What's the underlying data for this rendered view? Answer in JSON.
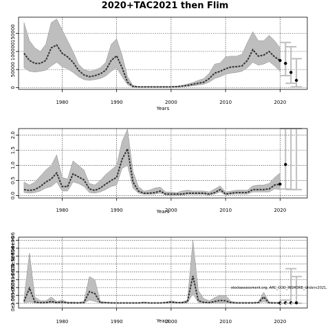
{
  "title": "2020+TAC2021 then Flim",
  "chart_data": [
    {
      "type": "line",
      "xlabel": "Years",
      "ylabel": "",
      "xlim": [
        1972,
        2025
      ],
      "ylim": [
        -5000,
        195000
      ],
      "xticks": [
        1980,
        1990,
        2000,
        2010,
        2020
      ],
      "xtick_labels": [
        "1980",
        "1990",
        "2000",
        "2010",
        "2020"
      ],
      "yticks": [
        0,
        50000,
        100000,
        150000
      ],
      "ytick_labels": [
        "0",
        "50000",
        "100000",
        "150000"
      ],
      "grid": true,
      "x": [
        1973,
        1974,
        1975,
        1976,
        1977,
        1978,
        1979,
        1980,
        1981,
        1982,
        1983,
        1984,
        1985,
        1986,
        1987,
        1988,
        1989,
        1990,
        1991,
        1992,
        1993,
        1994,
        1995,
        1996,
        1997,
        1998,
        1999,
        2000,
        2001,
        2002,
        2003,
        2004,
        2005,
        2006,
        2007,
        2008,
        2009,
        2010,
        2011,
        2012,
        2013,
        2014,
        2015,
        2016,
        2017,
        2018,
        2019,
        2020
      ],
      "values": [
        95000,
        75000,
        67000,
        67000,
        75000,
        110000,
        118000,
        95000,
        85000,
        70000,
        48000,
        35000,
        30000,
        33000,
        38000,
        48000,
        75000,
        88000,
        55000,
        15000,
        3000,
        2000,
        2000,
        2000,
        2000,
        2000,
        2000,
        2000,
        2500,
        4000,
        6000,
        9000,
        12000,
        15000,
        25000,
        40000,
        45000,
        52000,
        57000,
        58000,
        60000,
        75000,
        105000,
        87000,
        90000,
        100000,
        85000,
        75000
      ],
      "upper": [
        180000,
        130000,
        110000,
        100000,
        120000,
        180000,
        190000,
        160000,
        130000,
        100000,
        65000,
        50000,
        45000,
        48000,
        55000,
        70000,
        120000,
        135000,
        90000,
        30000,
        6000,
        3000,
        3000,
        3000,
        3000,
        3000,
        3000,
        3000,
        4000,
        6000,
        10000,
        14000,
        20000,
        25000,
        40000,
        65000,
        68000,
        85000,
        87000,
        87000,
        92000,
        125000,
        155000,
        130000,
        130000,
        145000,
        130000,
        110000
      ],
      "lower": [
        55000,
        45000,
        43000,
        45000,
        48000,
        60000,
        70000,
        58000,
        52000,
        42000,
        30000,
        22000,
        20000,
        22000,
        25000,
        32000,
        45000,
        55000,
        30000,
        8000,
        1000,
        800,
        800,
        800,
        800,
        800,
        800,
        800,
        1000,
        2000,
        3000,
        5000,
        7000,
        9000,
        15000,
        25000,
        30000,
        37000,
        40000,
        42000,
        45000,
        55000,
        70000,
        62000,
        65000,
        72000,
        60000,
        45000
      ],
      "projection": {
        "x": [
          2021,
          2022,
          2023
        ],
        "values": [
          67000,
          42000,
          20000
        ],
        "upper": [
          125000,
          113000,
          80000
        ],
        "lower": [
          33000,
          12000,
          2000
        ]
      },
      "annotation": ""
    },
    {
      "type": "line",
      "xlabel": "Years",
      "ylabel": "",
      "xlim": [
        1972,
        2025
      ],
      "ylim": [
        -0.08,
        2.22
      ],
      "xticks": [
        1980,
        1990,
        2000,
        2010,
        2020
      ],
      "xtick_labels": [
        "1980",
        "1990",
        "2000",
        "2010",
        "2020"
      ],
      "yticks": [
        0,
        0.5,
        1,
        1.5,
        2
      ],
      "ytick_labels": [
        "0.0",
        "0.5",
        "1.0",
        "1.5",
        "2.0"
      ],
      "grid": true,
      "x": [
        1973,
        1974,
        1975,
        1976,
        1977,
        1978,
        1979,
        1980,
        1981,
        1982,
        1983,
        1984,
        1985,
        1986,
        1987,
        1988,
        1989,
        1990,
        1991,
        1992,
        1993,
        1994,
        1995,
        1996,
        1997,
        1998,
        1999,
        2000,
        2001,
        2002,
        2003,
        2004,
        2005,
        2006,
        2007,
        2008,
        2009,
        2010,
        2011,
        2012,
        2013,
        2014,
        2015,
        2016,
        2017,
        2018,
        2019,
        2020
      ],
      "values": [
        0.2,
        0.17,
        0.2,
        0.3,
        0.45,
        0.55,
        0.75,
        0.3,
        0.3,
        0.72,
        0.62,
        0.52,
        0.22,
        0.17,
        0.25,
        0.38,
        0.5,
        0.6,
        1.2,
        1.55,
        0.45,
        0.15,
        0.08,
        0.08,
        0.1,
        0.15,
        0.05,
        0.05,
        0.05,
        0.05,
        0.08,
        0.08,
        0.08,
        0.08,
        0.05,
        0.1,
        0.2,
        0.05,
        0.08,
        0.1,
        0.1,
        0.1,
        0.2,
        0.2,
        0.2,
        0.22,
        0.35,
        0.38
      ],
      "upper": [
        0.45,
        0.35,
        0.45,
        0.65,
        0.85,
        1.0,
        1.35,
        0.6,
        0.55,
        1.15,
        1.0,
        0.85,
        0.4,
        0.35,
        0.5,
        0.7,
        0.85,
        1.0,
        1.8,
        2.2,
        0.8,
        0.3,
        0.15,
        0.18,
        0.25,
        0.28,
        0.12,
        0.12,
        0.1,
        0.15,
        0.18,
        0.15,
        0.15,
        0.15,
        0.12,
        0.22,
        0.32,
        0.12,
        0.15,
        0.18,
        0.18,
        0.18,
        0.32,
        0.35,
        0.35,
        0.4,
        0.6,
        0.75
      ],
      "lower": [
        0.1,
        0.08,
        0.1,
        0.15,
        0.25,
        0.3,
        0.45,
        0.15,
        0.15,
        0.45,
        0.4,
        0.3,
        0.1,
        0.08,
        0.12,
        0.2,
        0.3,
        0.35,
        0.9,
        1.0,
        0.25,
        0.08,
        0.04,
        0.04,
        0.05,
        0.08,
        0.02,
        0.02,
        0.02,
        0.02,
        0.04,
        0.04,
        0.04,
        0.04,
        0.02,
        0.05,
        0.12,
        0.02,
        0.04,
        0.05,
        0.05,
        0.05,
        0.12,
        0.12,
        0.12,
        0.12,
        0.22,
        0.2
      ],
      "projection": {
        "x": [
          2021,
          2022,
          2023
        ],
        "values": [
          1.03,
          null,
          null
        ],
        "upper": [
          2.22,
          2.22,
          2.22
        ],
        "lower": [
          0.22,
          0.2,
          0.2
        ]
      },
      "annotation": ""
    },
    {
      "type": "line",
      "xlabel": "Years",
      "ylabel": "",
      "xlim": [
        1972,
        2025
      ],
      "ylim": [
        -150000.0,
        2100000.0
      ],
      "xticks": [
        1980,
        1990,
        2000,
        2010,
        2020
      ],
      "xtick_labels": [
        "1980",
        "1990",
        "2000",
        "2010",
        "2020"
      ],
      "yticks": [
        0,
        250000,
        500000,
        750000,
        1000000,
        1250000,
        1500000,
        1750000,
        2000000
      ],
      "ytick_labels": [
        "0e+00",
        "2.5e+05",
        "5e+05",
        "7.5e+05",
        "1e+06",
        "1.25e+06",
        "1.5e+06",
        "1.75e+06",
        "2e+06"
      ],
      "grid": true,
      "x": [
        1973,
        1974,
        1975,
        1976,
        1977,
        1978,
        1979,
        1980,
        1981,
        1982,
        1983,
        1984,
        1985,
        1986,
        1987,
        1988,
        1989,
        1990,
        1991,
        1992,
        1993,
        1994,
        1995,
        1996,
        1997,
        1998,
        1999,
        2000,
        2001,
        2002,
        2003,
        2004,
        2005,
        2006,
        2007,
        2008,
        2009,
        2010,
        2011,
        2012,
        2013,
        2014,
        2015,
        2016,
        2017,
        2018,
        2019,
        2020
      ],
      "values": [
        60000,
        480000,
        40000,
        20000,
        20000,
        60000,
        20000,
        40000,
        10000,
        10000,
        10000,
        20000,
        370000,
        310000,
        20000,
        20000,
        10000,
        10000,
        10000,
        10000,
        10000,
        10000,
        20000,
        10000,
        10000,
        10000,
        20000,
        40000,
        20000,
        20000,
        50000,
        870000,
        80000,
        30000,
        20000,
        60000,
        90000,
        80000,
        20000,
        10000,
        10000,
        10000,
        10000,
        20000,
        200000,
        10000,
        10000,
        10000
      ],
      "upper": [
        160000,
        1600000,
        200000,
        80000,
        80000,
        200000,
        60000,
        100000,
        40000,
        40000,
        30000,
        60000,
        850000,
        750000,
        60000,
        40000,
        30000,
        20000,
        20000,
        20000,
        20000,
        20000,
        40000,
        20000,
        20000,
        20000,
        40000,
        80000,
        40000,
        40000,
        100000,
        2000000,
        400000,
        150000,
        80000,
        180000,
        250000,
        250000,
        60000,
        30000,
        30000,
        30000,
        30000,
        40000,
        350000,
        40000,
        30000,
        20000
      ],
      "lower": [
        10000,
        40000,
        10000,
        5000,
        5000,
        10000,
        5000,
        10000,
        3000,
        3000,
        3000,
        5000,
        100000,
        60000,
        5000,
        5000,
        3000,
        3000,
        3000,
        3000,
        3000,
        3000,
        5000,
        3000,
        3000,
        3000,
        5000,
        10000,
        5000,
        5000,
        10000,
        300000,
        20000,
        10000,
        5000,
        10000,
        10000,
        10000,
        5000,
        3000,
        3000,
        3000,
        3000,
        5000,
        50000,
        3000,
        3000,
        3000
      ],
      "projection": {
        "x": [
          2021,
          2022,
          2023
        ],
        "values": [
          15000,
          15000,
          15000
        ],
        "upper": [
          100000,
          1100000,
          850000
        ],
        "lower": [
          2000,
          2000,
          2000
        ]
      },
      "annotation": "stockassessment.org, ARC_COD_INSHORE_Underv2021,"
    }
  ],
  "colors": {
    "band": "#bebebe",
    "band_edge": "#8c8c8c",
    "line": "#333333",
    "point": "#000000",
    "whisker": "#bebebe"
  }
}
